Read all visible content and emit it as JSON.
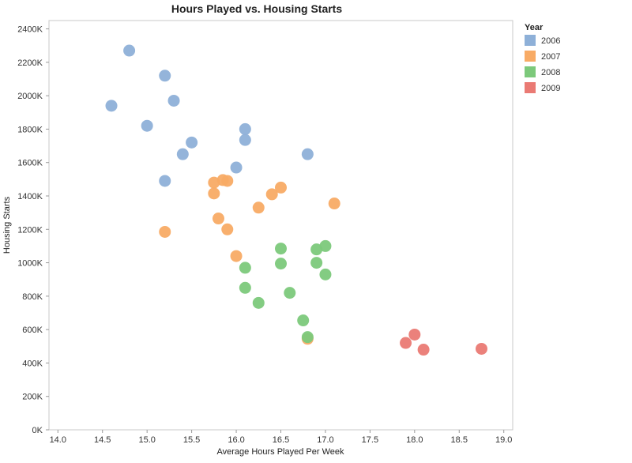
{
  "chart_data": {
    "type": "scatter",
    "title": "Hours Played vs. Housing Starts",
    "xlabel": "Average Hours Played Per Week",
    "ylabel": "Housing Starts",
    "xlim": [
      13.9,
      19.1
    ],
    "ylim": [
      0,
      2450
    ],
    "x_ticks": [
      14.0,
      14.5,
      15.0,
      15.5,
      16.0,
      16.5,
      17.0,
      17.5,
      18.0,
      18.5,
      19.0
    ],
    "x_tick_labels": [
      "14.0",
      "14.5",
      "15.0",
      "15.5",
      "16.0",
      "16.5",
      "17.0",
      "17.5",
      "18.0",
      "18.5",
      "19.0"
    ],
    "y_ticks": [
      0,
      200,
      400,
      600,
      800,
      1000,
      1200,
      1400,
      1600,
      1800,
      2000,
      2200,
      2400
    ],
    "y_tick_labels": [
      "0K",
      "200K",
      "400K",
      "600K",
      "800K",
      "1000K",
      "1200K",
      "1400K",
      "1600K",
      "1800K",
      "2000K",
      "2200K",
      "2400K"
    ],
    "grid": false,
    "legend": {
      "title": "Year",
      "position": "top-right"
    },
    "series": [
      {
        "name": "2006",
        "color": "#8eb0d8",
        "points": [
          {
            "x": 14.8,
            "y": 2270
          },
          {
            "x": 15.2,
            "y": 2120
          },
          {
            "x": 15.3,
            "y": 1970
          },
          {
            "x": 14.6,
            "y": 1940
          },
          {
            "x": 15.0,
            "y": 1820
          },
          {
            "x": 16.1,
            "y": 1800
          },
          {
            "x": 16.1,
            "y": 1735
          },
          {
            "x": 15.5,
            "y": 1720
          },
          {
            "x": 15.4,
            "y": 1650
          },
          {
            "x": 16.8,
            "y": 1650
          },
          {
            "x": 16.0,
            "y": 1570
          },
          {
            "x": 15.2,
            "y": 1490
          }
        ]
      },
      {
        "name": "2007",
        "color": "#f8ab65",
        "points": [
          {
            "x": 15.85,
            "y": 1495
          },
          {
            "x": 15.9,
            "y": 1490
          },
          {
            "x": 15.75,
            "y": 1480
          },
          {
            "x": 16.5,
            "y": 1450
          },
          {
            "x": 15.75,
            "y": 1415
          },
          {
            "x": 16.4,
            "y": 1410
          },
          {
            "x": 17.1,
            "y": 1355
          },
          {
            "x": 16.25,
            "y": 1330
          },
          {
            "x": 15.8,
            "y": 1265
          },
          {
            "x": 15.9,
            "y": 1200
          },
          {
            "x": 15.2,
            "y": 1185
          },
          {
            "x": 16.0,
            "y": 1040
          },
          {
            "x": 16.8,
            "y": 545
          }
        ]
      },
      {
        "name": "2008",
        "color": "#7cc97b",
        "points": [
          {
            "x": 17.0,
            "y": 1100
          },
          {
            "x": 16.5,
            "y": 1085
          },
          {
            "x": 16.9,
            "y": 1080
          },
          {
            "x": 16.9,
            "y": 1000
          },
          {
            "x": 16.5,
            "y": 995
          },
          {
            "x": 16.1,
            "y": 970
          },
          {
            "x": 17.0,
            "y": 930
          },
          {
            "x": 16.1,
            "y": 850
          },
          {
            "x": 16.6,
            "y": 820
          },
          {
            "x": 16.25,
            "y": 760
          },
          {
            "x": 16.75,
            "y": 655
          },
          {
            "x": 16.8,
            "y": 555
          }
        ]
      },
      {
        "name": "2009",
        "color": "#ea7a74",
        "points": [
          {
            "x": 18.0,
            "y": 570
          },
          {
            "x": 17.9,
            "y": 520
          },
          {
            "x": 18.75,
            "y": 485
          },
          {
            "x": 18.1,
            "y": 480
          }
        ]
      }
    ]
  }
}
